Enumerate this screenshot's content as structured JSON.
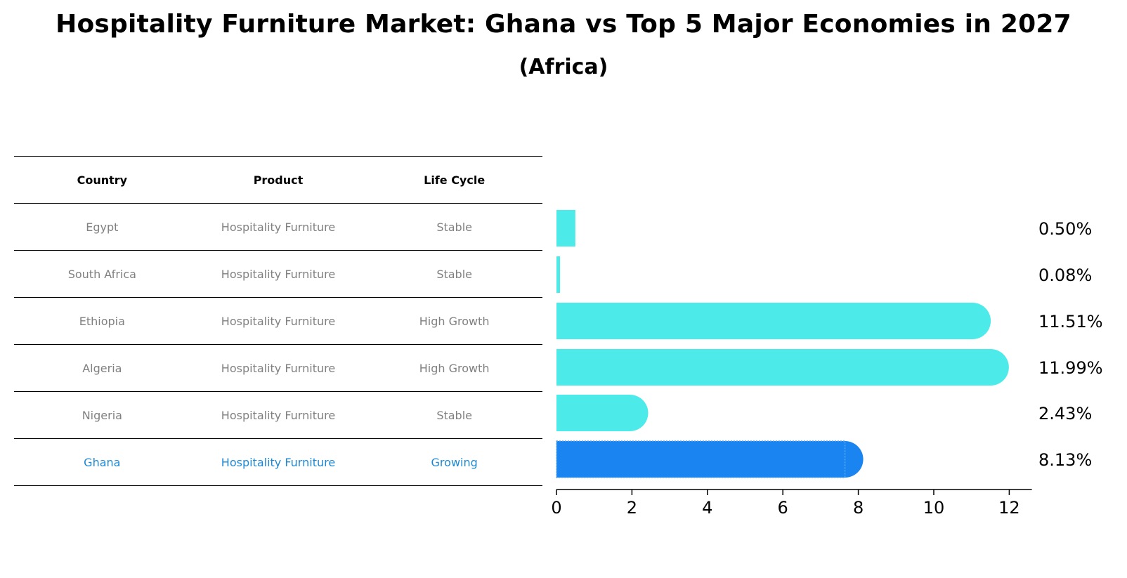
{
  "title": "Hospitality Furniture Market: Ghana vs Top 5 Major Economies in 2027",
  "subtitle": "(Africa)",
  "table": {
    "headers": [
      "Country",
      "Product",
      "Life Cycle"
    ],
    "rows": [
      {
        "country": "Egypt",
        "product": "Hospitality Furniture",
        "life_cycle": "Stable"
      },
      {
        "country": "South Africa",
        "product": "Hospitality Furniture",
        "life_cycle": "Stable"
      },
      {
        "country": "Ethiopia",
        "product": "Hospitality Furniture",
        "life_cycle": "High Growth"
      },
      {
        "country": "Algeria",
        "product": "Hospitality Furniture",
        "life_cycle": "High Growth"
      },
      {
        "country": "Nigeria",
        "product": "Hospitality Furniture",
        "life_cycle": "Stable"
      },
      {
        "country": "Ghana",
        "product": "Hospitality Furniture",
        "life_cycle": "Growing"
      }
    ],
    "highlight_row": "Ghana"
  },
  "colors": {
    "bar": "#4deaea",
    "highlight_bar": "#1a84f0",
    "highlight_text": "#1e88d2",
    "muted_text": "#808080"
  },
  "chart_data": {
    "type": "bar",
    "orientation": "horizontal",
    "categories": [
      "Egypt",
      "South Africa",
      "Ethiopia",
      "Algeria",
      "Nigeria",
      "Ghana"
    ],
    "values": [
      0.5,
      0.08,
      11.51,
      11.99,
      2.43,
      8.13
    ],
    "value_labels": [
      "0.50%",
      "0.08%",
      "11.51%",
      "11.99%",
      "2.43%",
      "8.13%"
    ],
    "highlight": "Ghana",
    "xlim": [
      0,
      12.6
    ],
    "xticks": [
      0,
      2,
      4,
      6,
      8,
      10,
      12
    ],
    "grid": false
  }
}
